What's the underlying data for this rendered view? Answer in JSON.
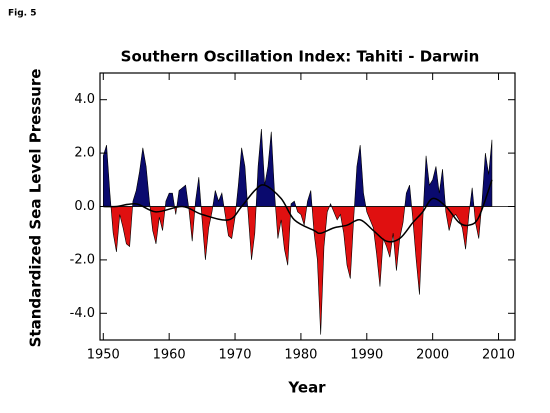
{
  "figure_label": "Fig. 5",
  "chart_data": {
    "type": "area",
    "title": "Southern Oscillation Index: Tahiti - Darwin",
    "xlabel": "Year",
    "ylabel": "Standardized Sea Level Pressure",
    "xlim": [
      1949.5,
      2012.5
    ],
    "ylim": [
      -5,
      5
    ],
    "xticks": [
      1950,
      1960,
      1970,
      1980,
      1990,
      2000,
      2010
    ],
    "yticks": [
      {
        "value": 4,
        "label": "4.0"
      },
      {
        "value": 2,
        "label": "2.0"
      },
      {
        "value": 0,
        "label": "0.0"
      },
      {
        "value": -2,
        "label": "-2.0"
      },
      {
        "value": -4,
        "label": "-4.0"
      }
    ],
    "pos_color": "#0a0a6e",
    "neg_color": "#e01010",
    "x": [
      1950,
      1950.5,
      1951,
      1951.5,
      1952,
      1952.5,
      1953,
      1953.5,
      1954,
      1954.5,
      1955,
      1955.5,
      1956,
      1956.5,
      1957,
      1957.5,
      1958,
      1958.5,
      1959,
      1959.5,
      1960,
      1960.5,
      1961,
      1961.5,
      1962,
      1962.5,
      1963,
      1963.5,
      1964,
      1964.5,
      1965,
      1965.5,
      1966,
      1966.5,
      1967,
      1967.5,
      1968,
      1968.5,
      1969,
      1969.5,
      1970,
      1970.5,
      1971,
      1971.5,
      1972,
      1972.5,
      1973,
      1973.5,
      1974,
      1974.5,
      1975,
      1975.5,
      1976,
      1976.5,
      1977,
      1977.5,
      1978,
      1978.5,
      1979,
      1979.5,
      1980,
      1980.5,
      1981,
      1981.5,
      1982,
      1982.5,
      1983,
      1983.5,
      1984,
      1984.5,
      1985,
      1985.5,
      1986,
      1986.5,
      1987,
      1987.5,
      1988,
      1988.5,
      1989,
      1989.5,
      1990,
      1990.5,
      1991,
      1991.5,
      1992,
      1992.5,
      1993,
      1993.5,
      1994,
      1994.5,
      1995,
      1995.5,
      1996,
      1996.5,
      1997,
      1997.5,
      1998,
      1998.5,
      1999,
      1999.5,
      2000,
      2000.5,
      2001,
      2001.5,
      2002,
      2002.5,
      2003,
      2003.5,
      2004,
      2004.5,
      2005,
      2005.5,
      2006,
      2006.5,
      2007,
      2007.5,
      2008,
      2008.5,
      2009
    ],
    "values": [
      1.9,
      2.3,
      0.5,
      -1.0,
      -1.7,
      -0.3,
      -0.8,
      -1.4,
      -1.5,
      0.2,
      0.6,
      1.3,
      2.2,
      1.5,
      0.2,
      -0.9,
      -1.4,
      -0.4,
      -0.9,
      0.2,
      0.5,
      0.5,
      -0.3,
      0.6,
      0.7,
      0.8,
      -0.1,
      -1.3,
      0.2,
      1.1,
      -0.5,
      -2.0,
      -0.8,
      -0.2,
      0.6,
      0.2,
      0.5,
      -0.3,
      -1.1,
      -1.2,
      -0.4,
      0.8,
      2.2,
      1.5,
      -0.3,
      -2.0,
      -1.0,
      1.5,
      2.9,
      0.8,
      1.5,
      2.8,
      0.5,
      -1.2,
      -0.5,
      -1.6,
      -2.2,
      0.1,
      0.2,
      -0.2,
      -0.3,
      -0.7,
      0.2,
      0.6,
      -1.0,
      -2.0,
      -4.8,
      -1.5,
      -0.2,
      0.1,
      -0.2,
      -0.5,
      -0.3,
      -1.0,
      -2.2,
      -2.7,
      -0.5,
      1.5,
      2.3,
      0.5,
      -0.2,
      -0.5,
      -0.8,
      -1.8,
      -3.0,
      -1.2,
      -1.5,
      -1.9,
      -1.0,
      -2.4,
      -1.2,
      -0.6,
      0.5,
      0.8,
      -0.5,
      -2.0,
      -3.3,
      -0.5,
      1.9,
      0.8,
      1.0,
      1.5,
      0.5,
      1.4,
      -0.2,
      -0.9,
      -0.4,
      -0.3,
      -0.5,
      -0.8,
      -1.6,
      -0.3,
      0.7,
      -0.6,
      -1.2,
      0.2,
      2.0,
      1.2,
      2.5
    ],
    "smooth": {
      "color": "#000000",
      "x": [
        1950,
        1952,
        1955,
        1958,
        1962,
        1965,
        1969,
        1971,
        1973,
        1974.5,
        1977,
        1979,
        1982,
        1983,
        1985,
        1987,
        1989,
        1991,
        1993,
        1995,
        1997,
        1998.5,
        2000,
        2002,
        2004,
        2005.5,
        2007,
        2009
      ],
      "values": [
        0.0,
        0.0,
        0.1,
        -0.2,
        0.0,
        -0.3,
        -0.5,
        0.0,
        0.6,
        0.8,
        0.3,
        -0.5,
        -0.9,
        -1.0,
        -0.8,
        -0.7,
        -0.5,
        -0.9,
        -1.3,
        -1.2,
        -0.6,
        -0.2,
        0.3,
        0.0,
        -0.6,
        -0.7,
        -0.4,
        1.0
      ]
    }
  }
}
